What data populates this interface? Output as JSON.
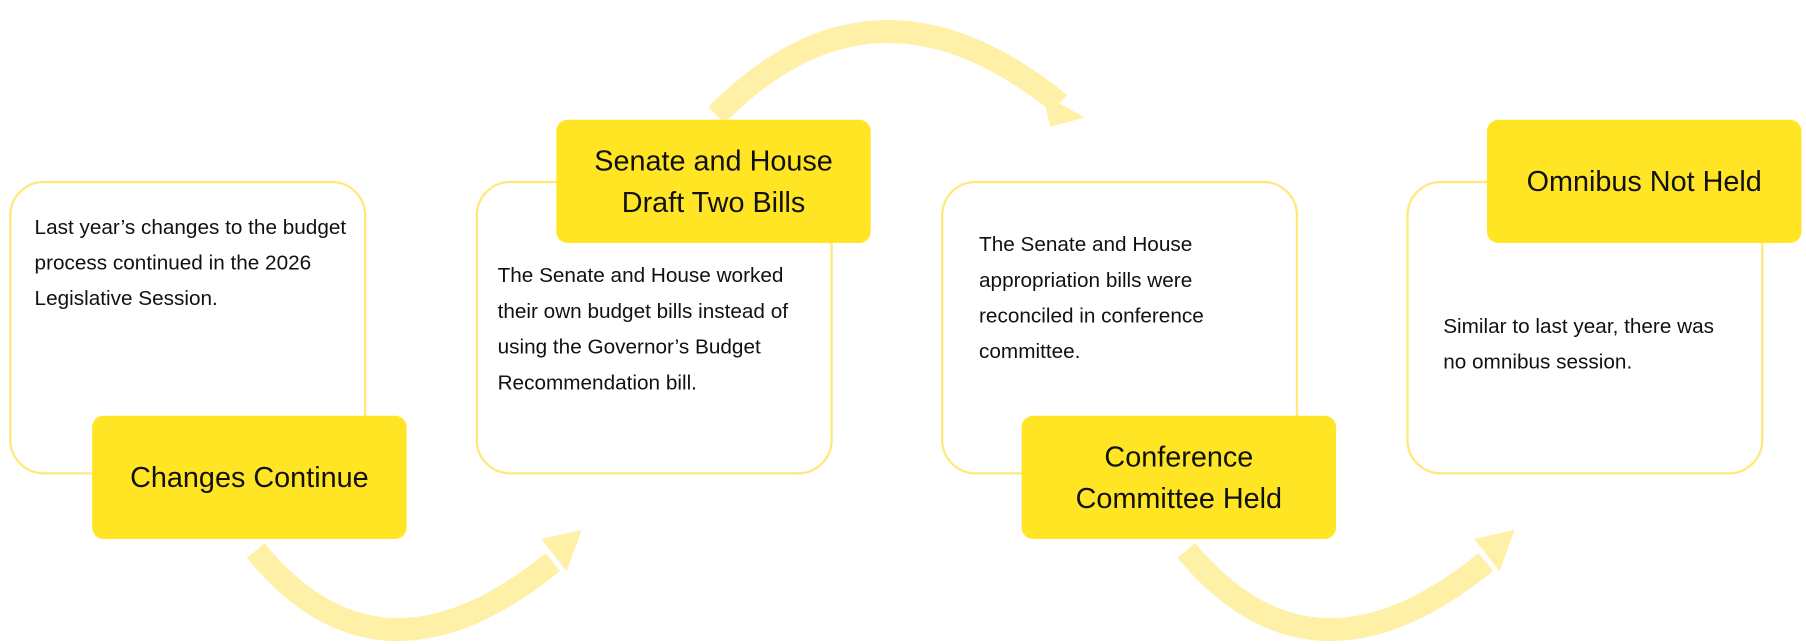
{
  "steps": [
    {
      "title": "Changes Continue",
      "text": "Last year’s changes to the budget process continued in the 2026 Legislative Session."
    },
    {
      "title": "Senate and House Draft Two Bills",
      "text": "The Senate and House worked their own budget bills instead of using the Governor’s Budget Recommendation bill."
    },
    {
      "title": "Conference Committee Held",
      "text": "The Senate and House appropriation bills were reconciled in conference committee."
    },
    {
      "title": "Omnibus Not Held",
      "text": "Similar to last year, there was no omnibus session."
    }
  ]
}
